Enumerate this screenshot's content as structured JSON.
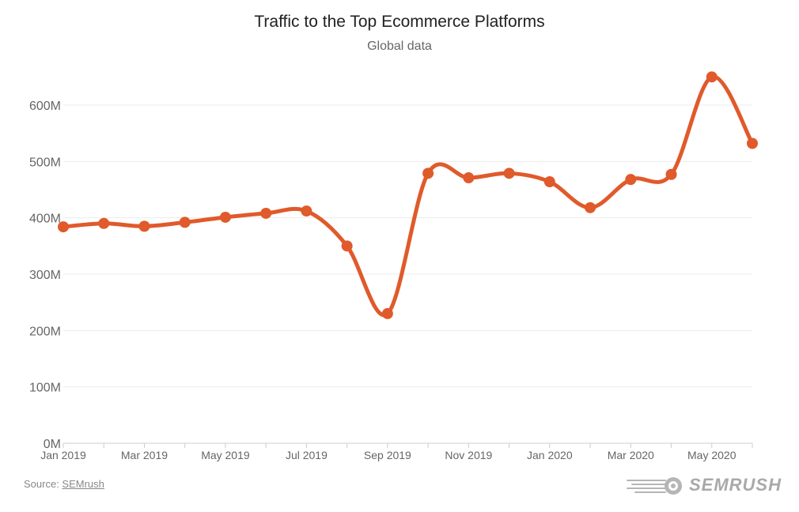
{
  "header": {
    "title": "Traffic to the Top Ecommerce Platforms",
    "subtitle": "Global data"
  },
  "footer": {
    "source_prefix": "Source: ",
    "source_link": "SEMrush",
    "logo_text": "SEMRUSH",
    "logo_icon": "semrush-fireball-icon"
  },
  "colors": {
    "line": "#e05a2b",
    "grid": "#ececec",
    "axis_text": "#666666"
  },
  "chart_data": {
    "type": "line",
    "title": "Traffic to the Top Ecommerce Platforms",
    "subtitle": "Global data",
    "xlabel": "",
    "ylabel": "",
    "ylim": [
      0,
      650
    ],
    "yticks": [
      0,
      100,
      200,
      300,
      400,
      500,
      600
    ],
    "ytick_labels": [
      "0M",
      "100M",
      "200M",
      "300M",
      "400M",
      "500M",
      "600M"
    ],
    "grid": true,
    "legend": "none",
    "x": [
      "Jan 2019",
      "Feb 2019",
      "Mar 2019",
      "Apr 2019",
      "May 2019",
      "Jun 2019",
      "Jul 2019",
      "Aug 2019",
      "Sep 2019",
      "Oct 2019",
      "Nov 2019",
      "Dec 2019",
      "Jan 2020",
      "Feb 2020",
      "Mar 2020",
      "Apr 2020",
      "May 2020",
      "Jun 2020"
    ],
    "xtick_labels": [
      "Jan 2019",
      "",
      "Mar 2019",
      "",
      "May 2019",
      "",
      "Jul 2019",
      "",
      "Sep 2019",
      "",
      "Nov 2019",
      "",
      "Jan 2020",
      "",
      "Mar 2020",
      "",
      "May 2020",
      ""
    ],
    "series": [
      {
        "values": [
          384,
          390,
          385,
          392,
          401,
          408,
          412,
          350,
          230,
          479,
          471,
          479,
          464,
          418,
          468,
          477,
          650,
          532
        ]
      }
    ]
  }
}
